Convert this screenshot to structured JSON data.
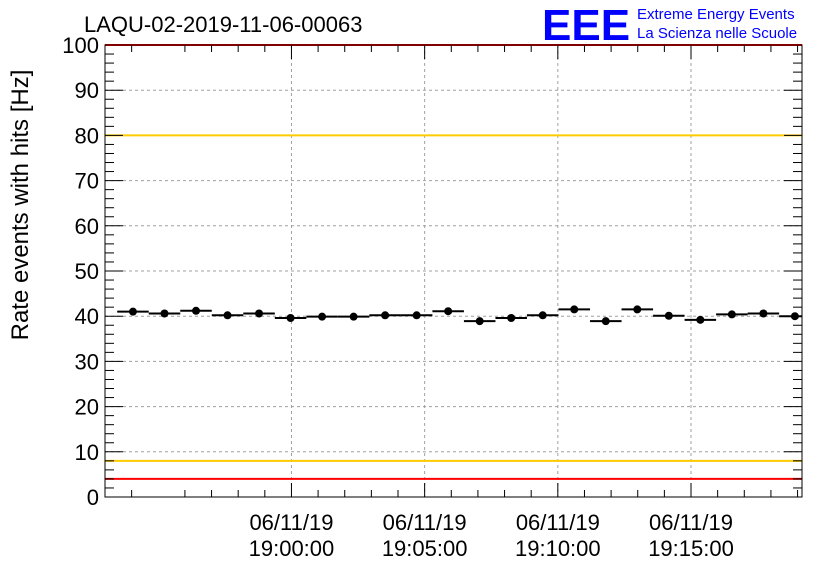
{
  "chart_data": {
    "type": "scatter",
    "title": "LAQU-02-2019-11-06-00063",
    "ylabel": "Rate events with hits [Hz]",
    "xlabel": "",
    "xlim_seconds": [
      -420,
      1150
    ],
    "ylim": [
      0,
      100
    ],
    "y_ticks": [
      0,
      10,
      20,
      30,
      40,
      50,
      60,
      70,
      80,
      90,
      100
    ],
    "x_ticks": [
      {
        "t": 0,
        "date": "06/11/19",
        "time": "19:00:00"
      },
      {
        "t": 300,
        "date": "06/11/19",
        "time": "19:05:00"
      },
      {
        "t": 600,
        "date": "06/11/19",
        "time": "19:10:00"
      },
      {
        "t": 900,
        "date": "06/11/19",
        "time": "19:15:00"
      }
    ],
    "series": [
      {
        "name": "rate",
        "x_seconds": [
          -357,
          -286,
          -215,
          -144,
          -73,
          -2,
          69,
          140,
          211,
          282,
          353,
          424,
          495,
          566,
          637,
          708,
          779,
          850,
          921,
          992,
          1063,
          1134
        ],
        "x_halfwidth_seconds": 35.5,
        "values": [
          41.0,
          40.6,
          41.2,
          40.2,
          40.6,
          39.6,
          39.9,
          39.9,
          40.2,
          40.2,
          41.1,
          38.9,
          39.6,
          40.2,
          41.5,
          38.9,
          41.5,
          40.1,
          39.2,
          40.4,
          40.6,
          40.0
        ]
      }
    ],
    "threshold_lines": [
      {
        "name": "upper-red",
        "value": 100,
        "color": "#ff0000"
      },
      {
        "name": "upper-yellow",
        "value": 80,
        "color": "#ffcc00"
      },
      {
        "name": "lower-yellow",
        "value": 8,
        "color": "#ffcc00"
      },
      {
        "name": "lower-red",
        "value": 4,
        "color": "#ff0000"
      }
    ],
    "grid": true
  },
  "logo": {
    "letters": "EEE",
    "line1": "Extreme Energy Events",
    "line2": "La Scienza nelle Scuole",
    "color": "#0000ff"
  }
}
